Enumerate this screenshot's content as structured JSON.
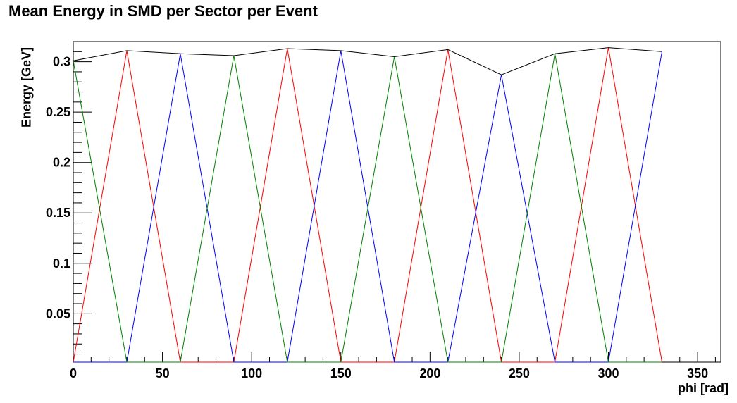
{
  "chart_data": {
    "type": "line",
    "title": "Mean Energy in SMD per Sector per Event",
    "xlabel": "phi [rad]",
    "ylabel": "Energy [GeV]",
    "xlim": [
      0,
      363
    ],
    "ylim": [
      0.002,
      0.32
    ],
    "x_ticks": [
      0,
      50,
      100,
      150,
      200,
      250,
      300,
      350
    ],
    "y_ticks": [
      0.05,
      0.1,
      0.15,
      0.2,
      0.25,
      0.3
    ],
    "grid": false,
    "legend": "none",
    "series": [
      {
        "color": "#000000",
        "x": [
          0,
          30,
          60,
          90,
          120,
          150,
          180,
          210,
          240,
          270,
          300,
          330
        ],
        "y": [
          0.301,
          0.311,
          0.308,
          0.306,
          0.313,
          0.311,
          0.305,
          0.312,
          0.287,
          0.308,
          0.314,
          0.31
        ]
      },
      {
        "color": "#ff0000",
        "x": [
          0,
          30,
          60,
          90,
          120,
          150,
          180,
          210,
          240,
          270,
          300,
          330
        ],
        "y": [
          0.002,
          0.311,
          0.002,
          0.002,
          0.313,
          0.002,
          0.002,
          0.312,
          0.002,
          0.002,
          0.314,
          0.002
        ]
      },
      {
        "color": "#0000ff",
        "x": [
          0,
          30,
          60,
          90,
          120,
          150,
          180,
          210,
          240,
          270,
          300,
          330
        ],
        "y": [
          0.002,
          0.002,
          0.308,
          0.002,
          0.002,
          0.311,
          0.002,
          0.002,
          0.287,
          0.002,
          0.002,
          0.31
        ]
      },
      {
        "color": "#008000",
        "x": [
          0,
          30,
          60,
          90,
          120,
          150,
          180,
          210,
          240,
          270,
          300,
          330
        ],
        "y": [
          0.301,
          0.002,
          0.002,
          0.306,
          0.002,
          0.002,
          0.305,
          0.002,
          0.002,
          0.308,
          0.002,
          0.002
        ]
      }
    ]
  }
}
